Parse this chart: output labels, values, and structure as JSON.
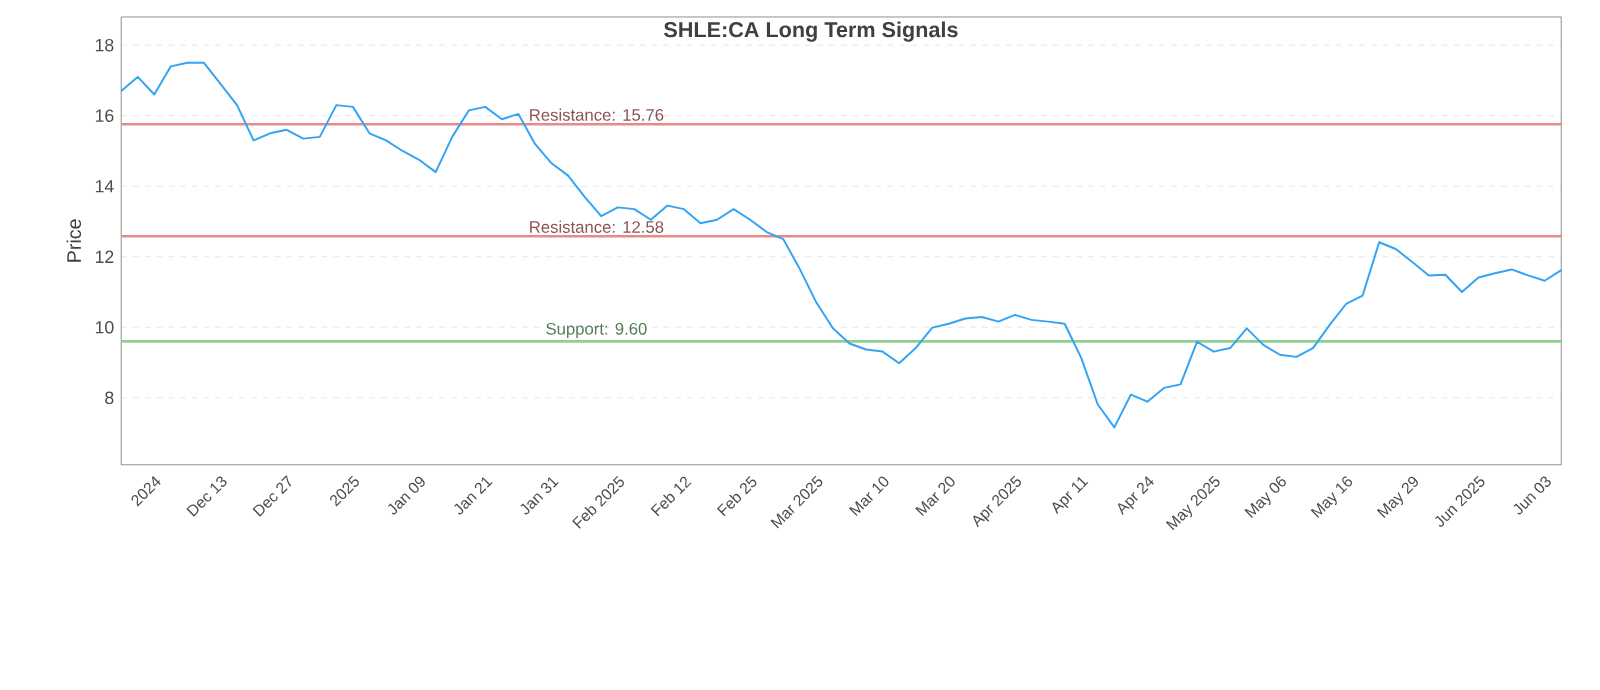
{
  "chart_data": {
    "type": "line",
    "title": "SHLE:CA Long Term Signals",
    "ylabel": "Price",
    "categories": [
      null,
      null,
      "2024",
      null,
      null,
      null,
      "Dec 13",
      null,
      null,
      null,
      "Dec 27",
      null,
      null,
      null,
      "2025",
      null,
      null,
      null,
      "Jan 09",
      null,
      null,
      null,
      "Jan 21",
      null,
      null,
      null,
      "Jan 31",
      null,
      null,
      null,
      "Feb 2025",
      null,
      null,
      null,
      "Feb 12",
      null,
      null,
      null,
      "Feb 25",
      null,
      null,
      null,
      "Mar 2025",
      null,
      null,
      null,
      "Mar 10",
      null,
      null,
      null,
      "Mar 20",
      null,
      null,
      null,
      "Apr 2025",
      null,
      null,
      null,
      "Apr 11",
      null,
      null,
      null,
      "Apr 24",
      null,
      null,
      null,
      "May 2025",
      null,
      null,
      null,
      "May 06",
      null,
      null,
      null,
      "May 16",
      null,
      null,
      null,
      "May 29",
      null,
      null,
      null,
      "Jun 2025",
      null,
      null,
      null,
      "Jun 03",
      null
    ],
    "series": [
      {
        "color": "#33a3f4",
        "values": [
          16.7,
          17.1,
          16.6,
          17.4,
          17.5,
          17.5,
          16.9,
          16.3,
          15.3,
          15.5,
          15.6,
          15.35,
          15.4,
          16.3,
          16.25,
          15.5,
          15.3,
          15.0,
          14.75,
          14.4,
          15.4,
          16.15,
          16.25,
          15.9,
          16.05,
          15.2,
          14.65,
          14.3,
          13.7,
          13.15,
          13.4,
          13.35,
          13.05,
          13.45,
          13.35,
          12.95,
          13.05,
          13.35,
          13.05,
          12.7,
          12.5,
          11.65,
          10.7,
          9.97,
          9.54,
          9.37,
          9.31,
          8.98,
          9.41,
          9.99,
          10.1,
          10.25,
          10.29,
          10.16,
          10.35,
          10.21,
          10.16,
          10.1,
          9.13,
          7.81,
          7.16,
          8.09,
          7.89,
          8.28,
          8.38,
          9.59,
          9.31,
          9.41,
          9.97,
          9.5,
          9.22,
          9.16,
          9.41,
          10.06,
          10.66,
          10.9,
          12.41,
          12.22,
          11.85,
          11.47,
          11.49,
          11.0,
          11.41,
          11.53,
          11.64,
          11.47,
          11.32,
          11.62
        ]
      }
    ],
    "ylim": [
      6.1,
      18.8
    ],
    "yticks": [
      8,
      10,
      12,
      14,
      16,
      18
    ],
    "grid": "y",
    "marker": "none",
    "line_style": "solid",
    "ref_lines": [
      {
        "axis": "y",
        "value": 15.76,
        "label": "Resistance: 15.76",
        "color": "#e88a8a"
      },
      {
        "axis": "y",
        "value": 12.58,
        "label": "Resistance: 12.58",
        "color": "#e88a8a"
      },
      {
        "axis": "y",
        "value": 9.6,
        "label": "Support: 9.60",
        "color": "#8fcf8f"
      }
    ]
  }
}
